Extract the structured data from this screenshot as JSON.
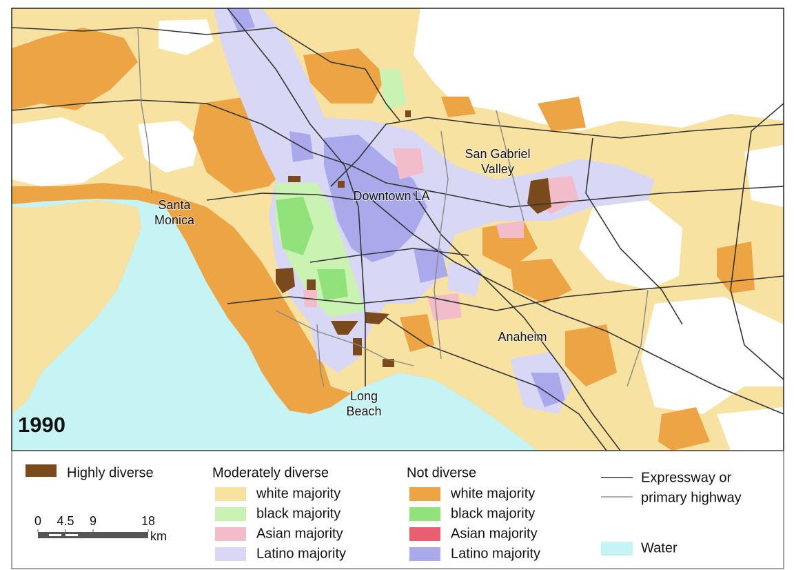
{
  "map": {
    "year": "1990",
    "labels": [
      {
        "lines": [
          "San Gabriel",
          "Valley"
        ]
      },
      {
        "lines": [
          "Downtown LA"
        ]
      },
      {
        "lines": [
          "Santa",
          "Monica"
        ]
      },
      {
        "lines": [
          "Anaheim"
        ]
      },
      {
        "lines": [
          "Long",
          "Beach"
        ]
      }
    ]
  },
  "legend": {
    "highly_diverse": "Highly diverse",
    "groups": [
      {
        "title": "Moderately diverse",
        "items": [
          "white majority",
          "black majority",
          "Asian majority",
          "Latino majority"
        ]
      },
      {
        "title": "Not diverse",
        "items": [
          "white majority",
          "black majority",
          "Asian majority",
          "Latino majority"
        ]
      }
    ],
    "roads": [
      "Expressway or",
      "primary highway"
    ],
    "water": "Water"
  },
  "scale": {
    "ticks": [
      0,
      4.5,
      9,
      18
    ],
    "unit": "km"
  }
}
